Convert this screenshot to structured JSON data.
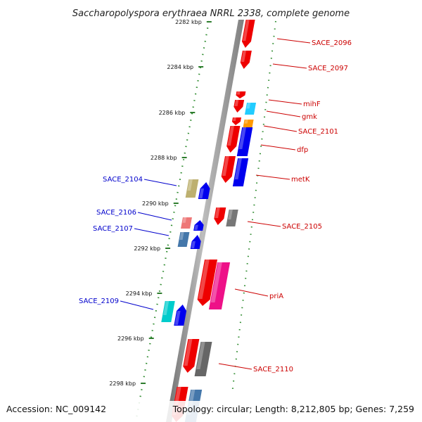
{
  "title": "Saccharopolyspora erythraea NRRL 2338, complete genome",
  "footer": {
    "accession": "Accession: NC_009142",
    "summary": "Topology: circular; Length: 8,212,805 bp; Genes: 7,259"
  },
  "colors": {
    "backbone": "#8c8c8c",
    "scale_dots": "#2e8b2e",
    "scale_ticks": "#2e7d2e",
    "label_forward": "#cc0000",
    "label_reverse": "#0000cc"
  },
  "scale_labels": [
    "2282 kbp",
    "2284 kbp",
    "2286 kbp",
    "2288 kbp",
    "2290 kbp",
    "2292 kbp",
    "2294 kbp",
    "2296 kbp",
    "2298 kbp"
  ],
  "gene_labels": [
    {
      "text": "SACE_2096",
      "side": "right"
    },
    {
      "text": "SACE_2097",
      "side": "right"
    },
    {
      "text": "mihF",
      "side": "right"
    },
    {
      "text": "gmk",
      "side": "right"
    },
    {
      "text": "SACE_2101",
      "side": "right"
    },
    {
      "text": "dfp",
      "side": "right"
    },
    {
      "text": "metK",
      "side": "right"
    },
    {
      "text": "SACE_2105",
      "side": "right"
    },
    {
      "text": "priA",
      "side": "right"
    },
    {
      "text": "SACE_2110",
      "side": "right"
    },
    {
      "text": "SACE_2104",
      "side": "left"
    },
    {
      "text": "SACE_2106",
      "side": "left"
    },
    {
      "text": "SACE_2107",
      "side": "left"
    },
    {
      "text": "SACE_2109",
      "side": "left"
    }
  ]
}
